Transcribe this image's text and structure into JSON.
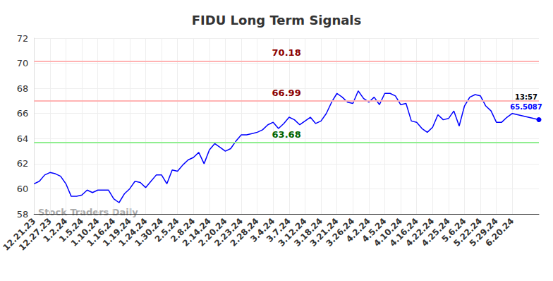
{
  "chart_data": {
    "type": "line",
    "title": "FIDU Long Term Signals",
    "watermark": "Stock Traders Daily",
    "categories": [
      "12.21.23",
      null,
      null,
      "12.27.23",
      null,
      null,
      "1.2.24",
      null,
      null,
      "1.5.24",
      null,
      null,
      "1.10.24",
      null,
      null,
      "1.16.24",
      null,
      null,
      "1.19.24",
      null,
      null,
      "1.24.24",
      null,
      null,
      "1.30.24",
      null,
      null,
      "2.5.24",
      null,
      null,
      "2.8.24",
      null,
      null,
      "2.14.24",
      null,
      null,
      "2.20.24",
      null,
      null,
      "2.23.24",
      null,
      null,
      "2.28.24",
      null,
      null,
      "3.4.24",
      null,
      null,
      "3.7.24",
      null,
      null,
      "3.12.24",
      null,
      null,
      "3.18.24",
      null,
      null,
      "3.21.24",
      null,
      null,
      "3.26.24",
      null,
      null,
      "4.2.24",
      null,
      null,
      "4.5.24",
      null,
      null,
      "4.10.24",
      null,
      null,
      "4.16.24",
      null,
      null,
      "4.22.24",
      null,
      null,
      "4.25.24",
      null,
      null,
      "5.6.24",
      null,
      null,
      "5.22.24",
      null,
      null,
      "5.29.24",
      null,
      null,
      "6.20.24",
      null,
      null,
      null,
      null,
      null
    ],
    "values": [
      60.4,
      60.6,
      61.1,
      61.3,
      61.2,
      61.0,
      60.4,
      59.4,
      59.4,
      59.5,
      59.9,
      59.7,
      59.9,
      59.9,
      59.9,
      59.2,
      58.9,
      59.6,
      60.0,
      60.6,
      60.5,
      60.1,
      60.6,
      61.1,
      61.1,
      60.4,
      61.5,
      61.4,
      61.9,
      62.3,
      62.5,
      62.9,
      62.0,
      63.1,
      63.6,
      63.3,
      63.0,
      63.2,
      63.8,
      64.3,
      64.3,
      64.4,
      64.5,
      64.7,
      65.1,
      65.3,
      64.8,
      65.2,
      65.7,
      65.5,
      65.1,
      65.4,
      65.7,
      65.2,
      65.4,
      66.0,
      66.9,
      67.6,
      67.3,
      66.9,
      66.8,
      67.8,
      67.2,
      66.9,
      67.3,
      66.7,
      67.6,
      67.6,
      67.4,
      66.7,
      66.8,
      65.4,
      65.3,
      64.8,
      64.5,
      64.9,
      65.9,
      65.5,
      65.6,
      66.2,
      65.0,
      66.6,
      67.3,
      67.5,
      67.4,
      66.6,
      66.2,
      65.3,
      65.3,
      65.7,
      66.0,
      65.9,
      65.8,
      65.7,
      65.6,
      65.5087
    ],
    "color": "#0000ff",
    "ylim": [
      58,
      72
    ],
    "yticks": [
      58,
      60,
      62,
      64,
      66,
      68,
      70,
      72
    ],
    "grid": true,
    "levels": [
      {
        "value": 70.18,
        "label": "70.18",
        "color": "#8b0000"
      },
      {
        "value": 66.99,
        "label": "66.99",
        "color": "#8b0000"
      },
      {
        "value": 63.68,
        "label": "63.68",
        "color": "#006400"
      }
    ],
    "last_point_time": "13:57"
  }
}
